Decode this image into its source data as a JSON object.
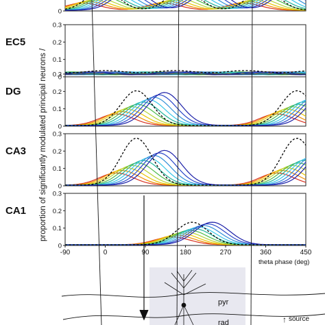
{
  "figure": {
    "ylabel": "proportion of significantly modulated principal neurons / ",
    "xlabel": "theta phase (deg)",
    "x_ticks": [
      "-90",
      "0",
      "90",
      "180",
      "270",
      "360",
      "450"
    ],
    "histology": {
      "layer_pyr": "pyr",
      "layer_rad": "rad",
      "source_label": "source",
      "source_arrow": "↑"
    }
  },
  "colors": {
    "ref": "#000000",
    "bins": [
      "#d7301f",
      "#f08c00",
      "#e8c400",
      "#b5d334",
      "#4dbb4b",
      "#1fb39a",
      "#37c6e8",
      "#2f8fd8",
      "#2b47c9",
      "#1b1fa8"
    ]
  },
  "chart_data": [
    {
      "type": "line",
      "panel_label": "",
      "ylim": [
        0,
        0.3
      ],
      "y_ticks": [
        "0"
      ],
      "x": [
        -90,
        450
      ],
      "peaks": [
        180,
        360,
        0
      ],
      "amp": 0.12,
      "spread": 0.5,
      "shift_deg": 12
    },
    {
      "type": "line",
      "panel_label": "EC5",
      "ylim": [
        0,
        0.3
      ],
      "y_ticks": [
        "0",
        "0.1",
        "0.2",
        "0.3"
      ],
      "x": [
        -90,
        450
      ],
      "peaks": [
        180
      ],
      "amp": 0.03,
      "spread": 0.1,
      "shift_deg": 4,
      "flat": true
    },
    {
      "type": "line",
      "panel_label": "DG",
      "ylim": [
        0,
        0.3
      ],
      "y_ticks": [
        "0",
        "0.1",
        "0.2",
        "0.3"
      ],
      "x": [
        -90,
        450
      ],
      "peaks": [
        75,
        435
      ],
      "amp": 0.19,
      "ref_amp": 0.2,
      "spread": 0.5,
      "shift_deg": 12
    },
    {
      "type": "line",
      "panel_label": "CA3",
      "ylim": [
        0,
        0.3
      ],
      "y_ticks": [
        "0",
        "0.1",
        "0.2",
        "0.3"
      ],
      "x": [
        -90,
        450
      ],
      "peaks": [
        75,
        435
      ],
      "amp": 0.2,
      "ref_amp": 0.27,
      "spread": 0.5,
      "shift_deg": 12
    },
    {
      "type": "line",
      "panel_label": "CA1",
      "ylim": [
        0,
        0.3
      ],
      "y_ticks": [
        "0",
        "0.1",
        "0.2",
        "0.3"
      ],
      "x": [
        -90,
        450
      ],
      "peaks": [
        200
      ],
      "amp": 0.13,
      "ref_amp": 0.13,
      "spread": 0.55,
      "shift_deg": 10
    }
  ]
}
